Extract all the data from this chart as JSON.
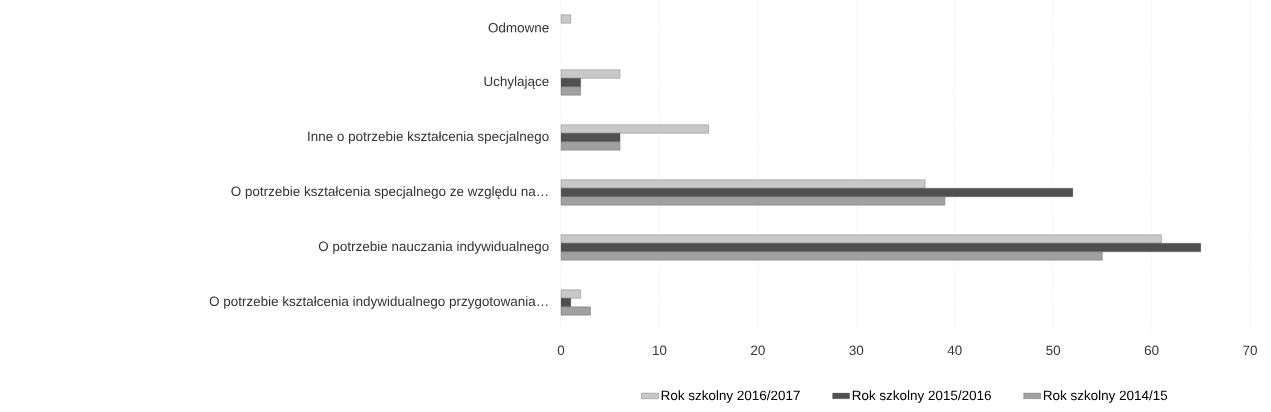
{
  "chart_data": {
    "type": "bar",
    "orientation": "horizontal",
    "categories": [
      "Odmowne",
      "Uchylające",
      "Inne o potrzebie kształcenia specjalnego",
      "O potrzebie kształcenia specjalnego ze względu na…",
      "O potrzebie nauczania indywidualnego",
      "O potrzebie kształcenia indywidualnego przygotowania…"
    ],
    "series": [
      {
        "name": "Rok szkolny 2016/2017",
        "color": "#c8c8c8",
        "values": [
          1,
          6,
          15,
          37,
          61,
          2
        ]
      },
      {
        "name": "Rok szkolny 2015/2016",
        "color": "#505050",
        "values": [
          0,
          2,
          6,
          52,
          65,
          1
        ]
      },
      {
        "name": "Rok szkolny 2014/15",
        "color": "#a0a0a0",
        "values": [
          0,
          2,
          6,
          39,
          55,
          3
        ]
      }
    ],
    "xlim": [
      0,
      70
    ],
    "xticks": [
      0,
      10,
      20,
      30,
      40,
      50,
      60,
      70
    ],
    "grid": "x",
    "legend": "bottom"
  }
}
